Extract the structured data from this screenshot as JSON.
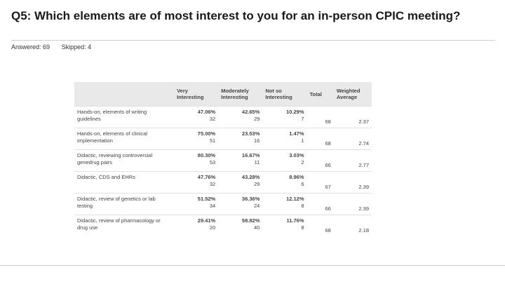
{
  "question": "Q5: Which elements are of most interest to you for an in-person CPIC meeting?",
  "answered": "Answered: 69",
  "skipped": "Skipped: 4",
  "table": {
    "headers": [
      "",
      "Very Interesting",
      "Moderately Interesting",
      "Not so Interesting",
      "Total",
      "Weighted Average"
    ],
    "rows": [
      {
        "label": "Hands-on, elements of writing guidelines",
        "very_pct": "47.06%",
        "very_n": "32",
        "mod_pct": "42.65%",
        "mod_n": "29",
        "not_pct": "10.29%",
        "not_n": "7",
        "total": "68",
        "weighted": "2.37"
      },
      {
        "label": "Hands-on, elements of clinical implementation",
        "very_pct": "75.00%",
        "very_n": "51",
        "mod_pct": "23.53%",
        "mod_n": "16",
        "not_pct": "1.47%",
        "not_n": "1",
        "total": "68",
        "weighted": "2.74"
      },
      {
        "label": "Didactic, reviewing controversial genedrug pairs",
        "very_pct": "80.30%",
        "very_n": "53",
        "mod_pct": "16.67%",
        "mod_n": "11",
        "not_pct": "3.03%",
        "not_n": "2",
        "total": "66",
        "weighted": "2.77"
      },
      {
        "label": "Didactic, CDS and EHRs",
        "very_pct": "47.76%",
        "very_n": "32",
        "mod_pct": "43.28%",
        "mod_n": "29",
        "not_pct": "8.96%",
        "not_n": "6",
        "total": "67",
        "weighted": "2.39"
      },
      {
        "label": "Didactic, review of genetics or lab testing",
        "very_pct": "51.52%",
        "very_n": "34",
        "mod_pct": "36.36%",
        "mod_n": "24",
        "not_pct": "12.12%",
        "not_n": "8",
        "total": "66",
        "weighted": "2.39"
      },
      {
        "label": "Didactic, review of pharmacology or drug use",
        "very_pct": "29.41%",
        "very_n": "20",
        "mod_pct": "58.82%",
        "mod_n": "40",
        "not_pct": "11.76%",
        "not_n": "8",
        "total": "68",
        "weighted": "2.18"
      }
    ]
  }
}
